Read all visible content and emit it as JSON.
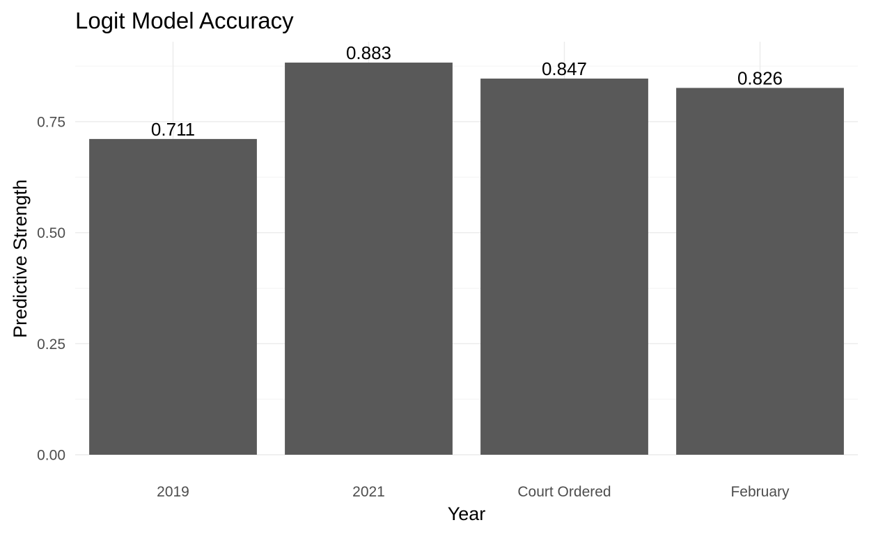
{
  "chart_data": {
    "type": "bar",
    "title": "Logit Model Accuracy",
    "xlabel": "Year",
    "ylabel": "Predictive Strength",
    "categories": [
      "2019",
      "2021",
      "Court Ordered",
      "February"
    ],
    "values": [
      0.711,
      0.883,
      0.847,
      0.826
    ],
    "value_labels": [
      "0.711",
      "0.883",
      "0.847",
      "0.826"
    ],
    "ylim": [
      0,
      0.9
    ],
    "y_ticks": [
      0,
      0.25,
      0.5,
      0.75
    ],
    "y_tick_labels": [
      "0.00",
      "0.25",
      "0.50",
      "0.75"
    ],
    "grid": true,
    "legend": "none",
    "colors": {
      "bar": "#595959",
      "background": "#ffffff",
      "grid": "#ebebeb"
    }
  }
}
